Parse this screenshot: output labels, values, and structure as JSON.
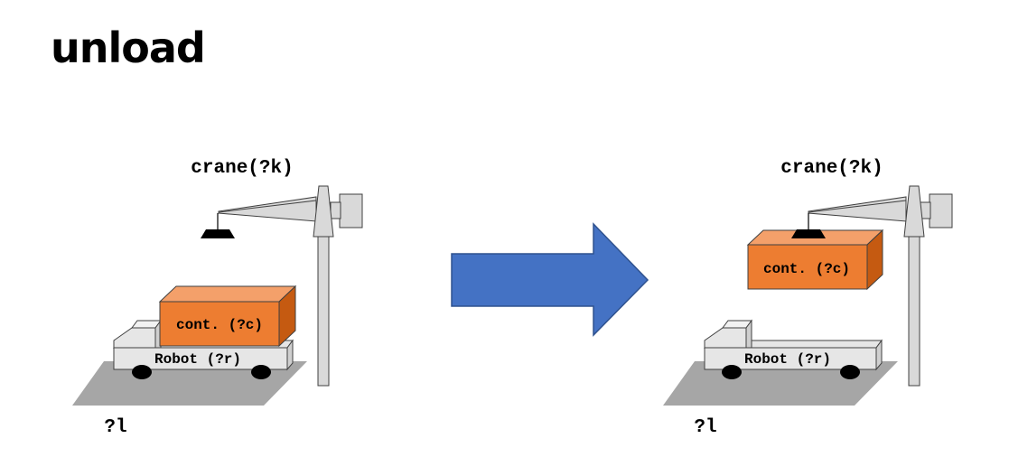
{
  "title": "unload",
  "before": {
    "crane_label": "crane(?k)",
    "container_label": "cont. (?c)",
    "robot_label": "Robot (?r)",
    "location_label": "?l"
  },
  "after": {
    "crane_label": "crane(?k)",
    "container_label": "cont. (?c)",
    "robot_label": "Robot (?r)",
    "location_label": "?l"
  },
  "colors": {
    "container_front": "#ed7d31",
    "container_top": "#f4a06a",
    "container_side": "#c55a11",
    "arrow": "#4472c4",
    "arrow_border": "#2f528f",
    "ground": "#a6a6a6",
    "crane_gray": "#d9d9d9"
  }
}
